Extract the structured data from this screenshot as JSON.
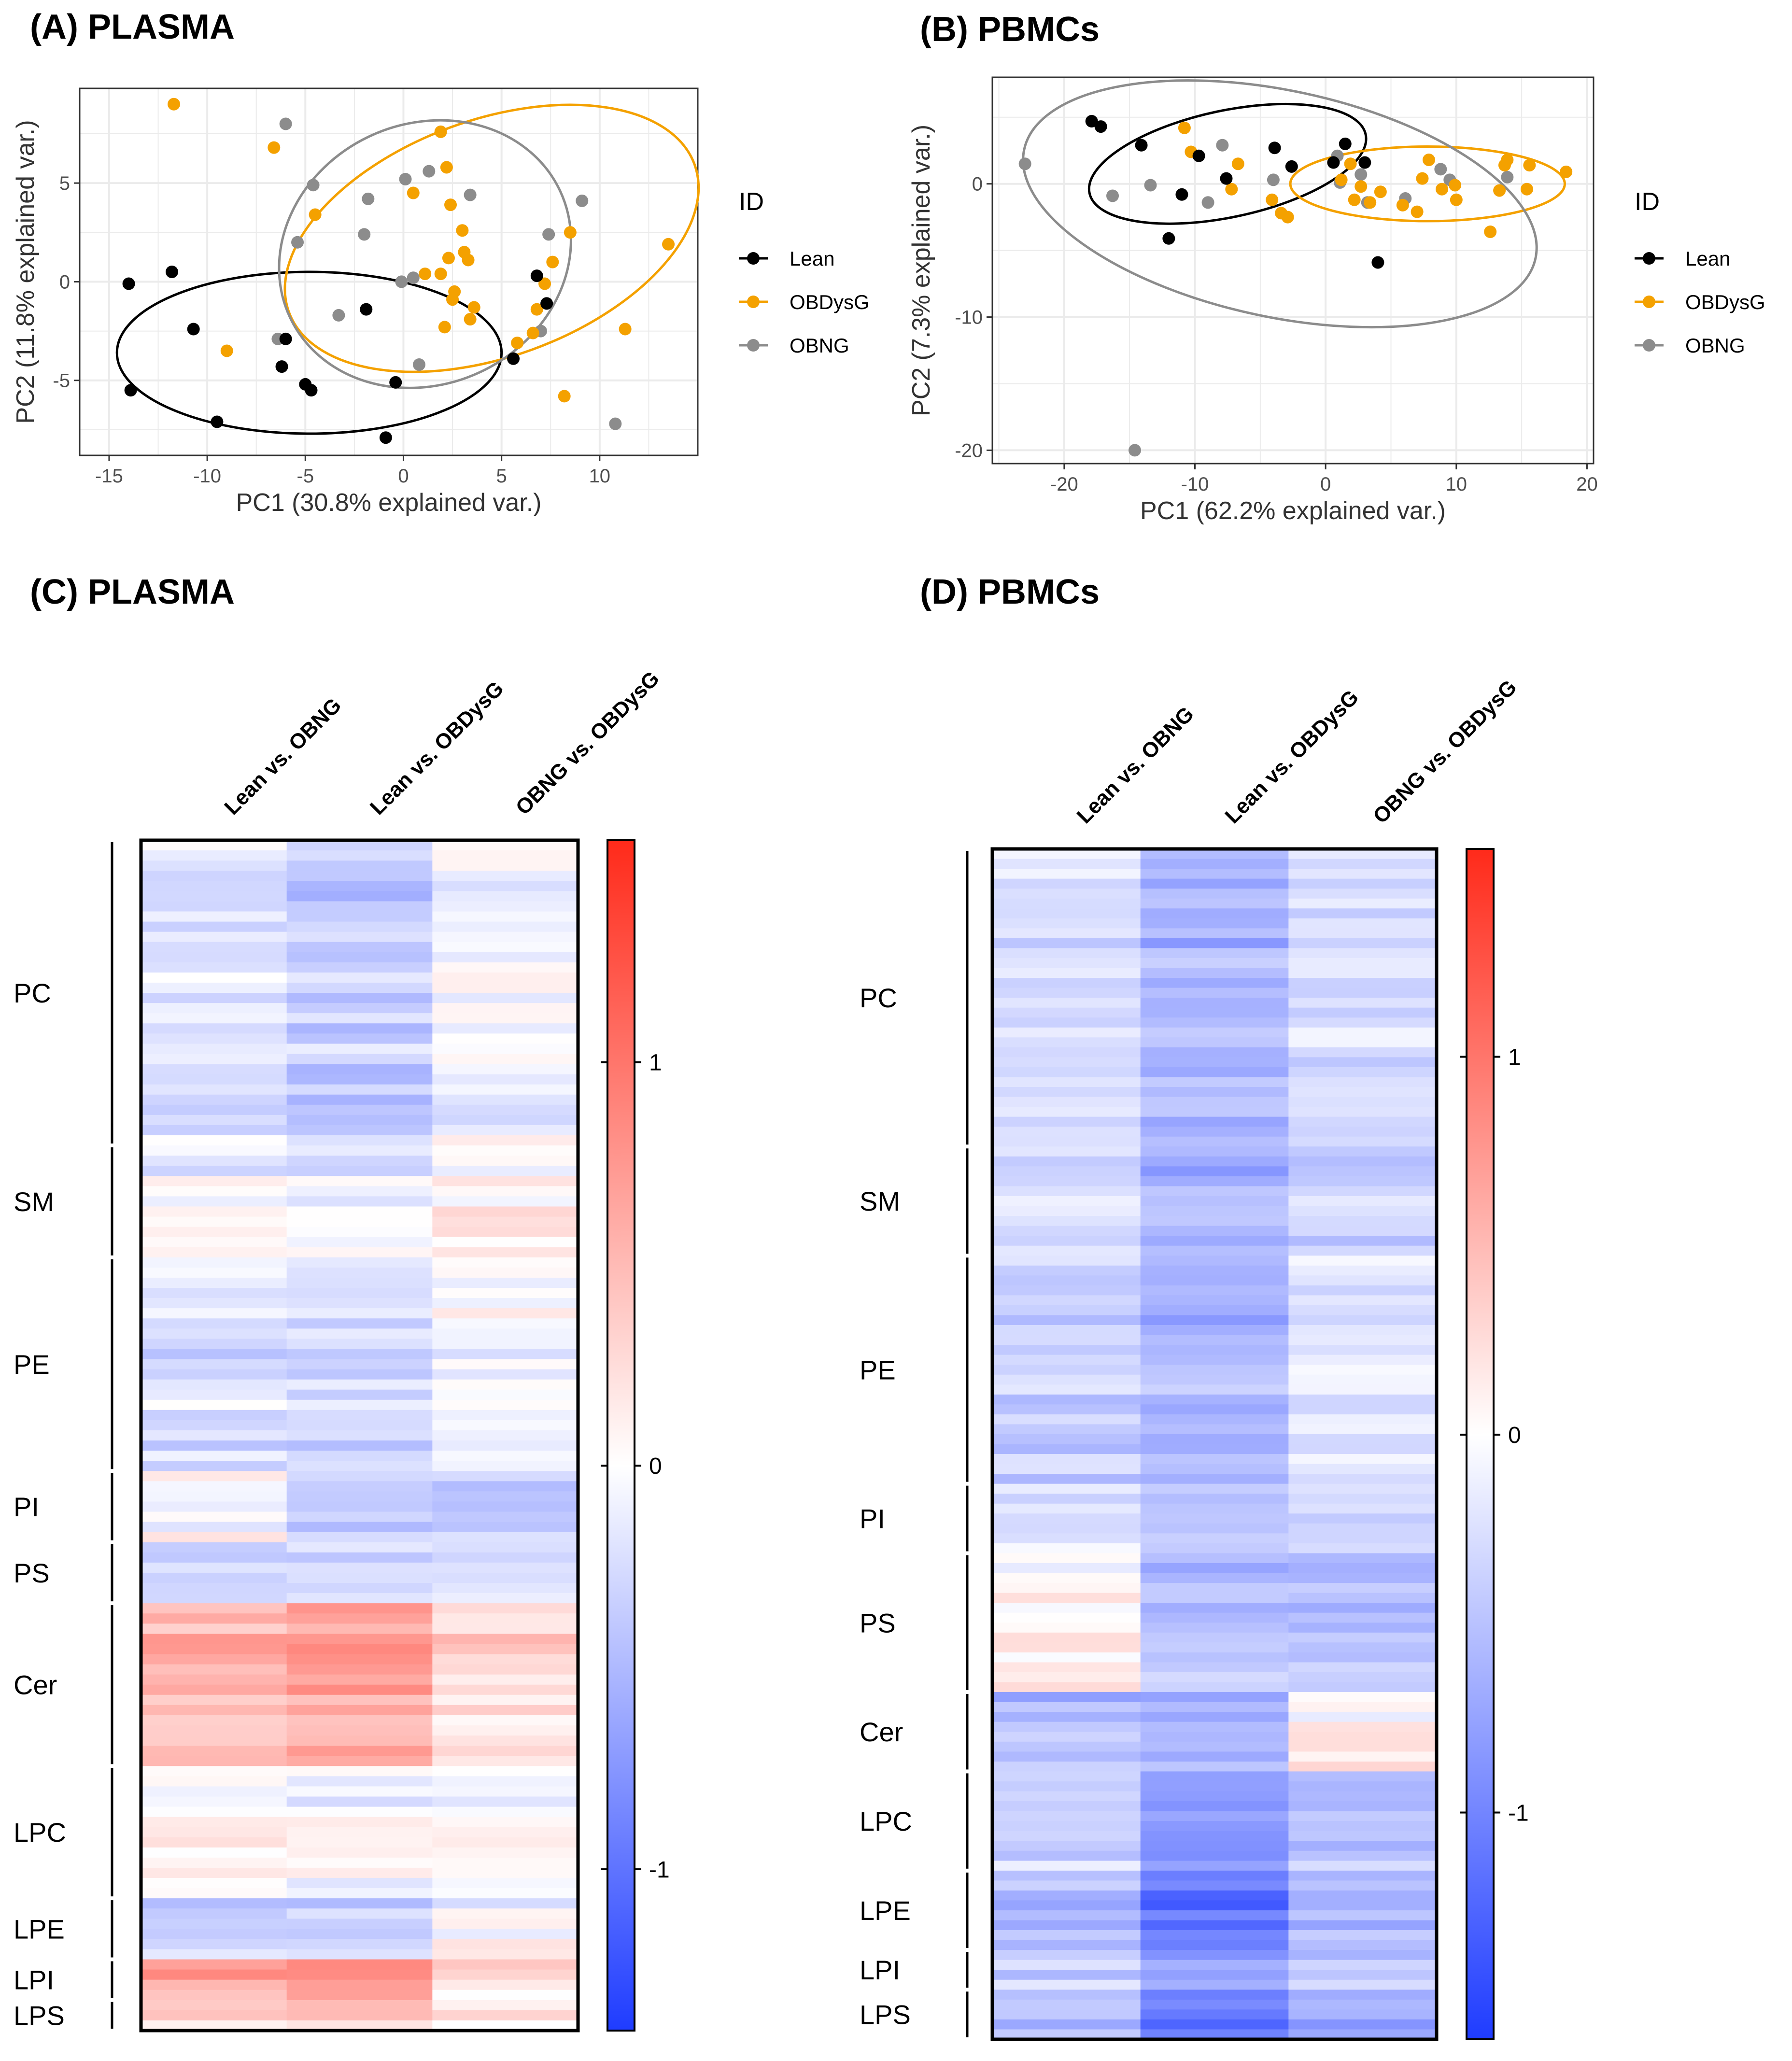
{
  "panels": {
    "A": "(A) PLASMA",
    "B": "(B) PBMCs",
    "C": "(C) PLASMA",
    "D": "(D) PBMCs"
  },
  "legend": {
    "title": "ID",
    "entries": [
      "Lean",
      "OBDysG",
      "OBNG"
    ]
  },
  "colors": {
    "Lean": "#000000",
    "OBDysG": "#f4a100",
    "OBNG": "#8c8c8c",
    "heat_neg": "#1f3cff",
    "heat_mid": "#ffffff",
    "heat_pos": "#ff2a1a",
    "panel_bg": "#ffffff",
    "grid": "#ebebeb"
  },
  "chart_data": [
    {
      "id": "A",
      "type": "scatter",
      "title": "(A) PLASMA",
      "xlabel": "PC1 (30.8% explained var.)",
      "ylabel": "PC2 (11.8% explained var.)",
      "xlim": [
        -16.5,
        15
      ],
      "ylim": [
        -8.8,
        9.8
      ],
      "xticks": [
        -15,
        -10,
        -5,
        0,
        5,
        10
      ],
      "xtick_labels": [
        "-15",
        "-10",
        "-5",
        "0",
        "5",
        "10"
      ],
      "yticks": [
        -5,
        0,
        5
      ],
      "ytick_labels": [
        "-5",
        "0",
        "5"
      ],
      "series": [
        {
          "name": "Lean",
          "points": [
            [
              -14.0,
              -0.1
            ],
            [
              -11.8,
              0.5
            ],
            [
              -10.7,
              -2.4
            ],
            [
              -13.9,
              -5.5
            ],
            [
              -9.5,
              -7.1
            ],
            [
              -6.2,
              -4.3
            ],
            [
              -6.0,
              -2.9
            ],
            [
              -5.0,
              -5.2
            ],
            [
              -4.7,
              -5.5
            ],
            [
              -1.9,
              -1.4
            ],
            [
              -0.4,
              -5.1
            ],
            [
              -0.9,
              -7.9
            ],
            [
              5.6,
              -3.9
            ],
            [
              6.8,
              0.3
            ],
            [
              7.3,
              -1.1
            ]
          ],
          "ellipse": {
            "cx": -4.8,
            "cy": -3.6,
            "rx": 9.8,
            "ry": 4.1,
            "angle": 0
          }
        },
        {
          "name": "OBDysG",
          "points": [
            [
              -11.7,
              9.0
            ],
            [
              -9.0,
              -3.5
            ],
            [
              -6.6,
              6.8
            ],
            [
              -4.5,
              3.4
            ],
            [
              1.9,
              7.6
            ],
            [
              2.2,
              5.8
            ],
            [
              0.5,
              4.5
            ],
            [
              2.4,
              3.9
            ],
            [
              3.0,
              2.6
            ],
            [
              3.1,
              1.5
            ],
            [
              3.3,
              1.1
            ],
            [
              2.3,
              1.2
            ],
            [
              1.9,
              0.4
            ],
            [
              1.1,
              0.4
            ],
            [
              2.6,
              -0.5
            ],
            [
              2.5,
              -0.9
            ],
            [
              3.6,
              -1.3
            ],
            [
              3.4,
              -1.9
            ],
            [
              2.1,
              -2.3
            ],
            [
              5.8,
              -3.1
            ],
            [
              6.8,
              -1.4
            ],
            [
              6.6,
              -2.6
            ],
            [
              7.2,
              -0.1
            ],
            [
              7.6,
              1.0
            ],
            [
              8.5,
              2.5
            ],
            [
              11.3,
              -2.4
            ],
            [
              13.5,
              1.9
            ],
            [
              8.2,
              -5.8
            ]
          ],
          "ellipse": {
            "cx": 4.5,
            "cy": 2.2,
            "rx": 11.0,
            "ry": 6.0,
            "angle": -20
          }
        },
        {
          "name": "OBNG",
          "points": [
            [
              -6.0,
              8.0
            ],
            [
              -4.6,
              4.9
            ],
            [
              -5.4,
              2.0
            ],
            [
              -6.4,
              -2.9
            ],
            [
              -3.3,
              -1.7
            ],
            [
              -1.8,
              4.2
            ],
            [
              -2.0,
              2.4
            ],
            [
              0.1,
              5.2
            ],
            [
              0.5,
              0.2
            ],
            [
              1.3,
              5.6
            ],
            [
              3.4,
              4.4
            ],
            [
              0.8,
              -4.2
            ],
            [
              -0.1,
              0.0
            ],
            [
              7.4,
              2.4
            ],
            [
              9.1,
              4.1
            ],
            [
              7.0,
              -2.5
            ],
            [
              10.8,
              -7.2
            ]
          ],
          "ellipse": {
            "cx": 1.1,
            "cy": 1.4,
            "rx": 7.6,
            "ry": 6.6,
            "angle": -25
          }
        }
      ]
    },
    {
      "id": "B",
      "type": "scatter",
      "title": "(B) PBMCs",
      "xlabel": "PC1 (62.2% explained var.)",
      "ylabel": "PC2 (7.3% explained var.)",
      "xlim": [
        -25.5,
        20.5
      ],
      "ylim": [
        -21.0,
        8.0
      ],
      "xticks": [
        -20,
        -10,
        0,
        10,
        20
      ],
      "xtick_labels": [
        "-20",
        "-10",
        "0",
        "10",
        "20"
      ],
      "yticks": [
        -20,
        -10,
        0
      ],
      "ytick_labels": [
        "-20",
        "-10",
        "0"
      ],
      "series": [
        {
          "name": "Lean",
          "points": [
            [
              -17.9,
              4.7
            ],
            [
              -17.2,
              4.3
            ],
            [
              -14.1,
              2.9
            ],
            [
              -9.7,
              2.1
            ],
            [
              -11.0,
              -0.8
            ],
            [
              -7.6,
              0.4
            ],
            [
              -3.9,
              2.7
            ],
            [
              -2.6,
              1.3
            ],
            [
              -12.0,
              -4.1
            ],
            [
              0.6,
              1.6
            ],
            [
              1.5,
              3.0
            ],
            [
              3.0,
              1.6
            ],
            [
              4.0,
              -5.9
            ]
          ],
          "ellipse": {
            "cx": -7.5,
            "cy": 1.5,
            "rx": 10.8,
            "ry": 4.0,
            "angle": -12
          }
        },
        {
          "name": "OBDysG",
          "points": [
            [
              -10.8,
              4.2
            ],
            [
              -10.3,
              2.4
            ],
            [
              -6.7,
              1.5
            ],
            [
              -7.2,
              -0.4
            ],
            [
              -4.1,
              -1.2
            ],
            [
              -3.4,
              -2.2
            ],
            [
              -2.9,
              -2.5
            ],
            [
              1.2,
              0.3
            ],
            [
              1.9,
              1.5
            ],
            [
              2.2,
              -1.2
            ],
            [
              2.7,
              -0.2
            ],
            [
              3.4,
              -1.4
            ],
            [
              4.2,
              -0.6
            ],
            [
              5.9,
              -1.6
            ],
            [
              7.0,
              -2.1
            ],
            [
              7.4,
              0.4
            ],
            [
              7.9,
              1.8
            ],
            [
              8.9,
              -0.4
            ],
            [
              9.9,
              -0.1
            ],
            [
              10.0,
              -1.2
            ],
            [
              12.6,
              -3.6
            ],
            [
              13.3,
              -0.5
            ],
            [
              13.7,
              1.4
            ],
            [
              15.4,
              -0.4
            ],
            [
              15.6,
              1.4
            ],
            [
              18.4,
              0.9
            ],
            [
              13.9,
              1.8
            ]
          ],
          "ellipse": {
            "cx": 7.8,
            "cy": 0.0,
            "rx": 10.5,
            "ry": 2.8,
            "angle": 0
          }
        },
        {
          "name": "OBNG",
          "points": [
            [
              -23.0,
              1.5
            ],
            [
              -16.3,
              -0.9
            ],
            [
              -13.4,
              -0.1
            ],
            [
              -9.0,
              -1.4
            ],
            [
              -7.9,
              2.9
            ],
            [
              -4.0,
              0.3
            ],
            [
              0.9,
              2.1
            ],
            [
              1.1,
              0.1
            ],
            [
              2.7,
              0.7
            ],
            [
              3.2,
              -1.4
            ],
            [
              6.1,
              -1.1
            ],
            [
              8.8,
              1.1
            ],
            [
              9.5,
              0.3
            ],
            [
              13.9,
              0.5
            ],
            [
              -14.6,
              -20.0
            ]
          ],
          "ellipse": {
            "cx": -3.5,
            "cy": -1.5,
            "rx": 20.0,
            "ry": 8.5,
            "angle": 12
          }
        }
      ]
    },
    {
      "id": "C",
      "type": "heatmap",
      "title": "(C) PLASMA",
      "columns": [
        "Lean vs. OBNG",
        "Lean vs. OBDysG",
        "OBNG vs. OBDysG"
      ],
      "row_groups": [
        {
          "name": "PC",
          "rows": 30,
          "values": [
            -0.2,
            -0.35,
            -0.06
          ]
        },
        {
          "name": "SM",
          "rows": 11,
          "values": [
            -0.05,
            -0.1,
            0.08
          ]
        },
        {
          "name": "PE",
          "rows": 21,
          "values": [
            -0.2,
            -0.22,
            -0.02
          ]
        },
        {
          "name": "PI",
          "rows": 7,
          "values": [
            0.05,
            -0.3,
            -0.35
          ]
        },
        {
          "name": "PS",
          "rows": 6,
          "values": [
            -0.22,
            -0.2,
            -0.15
          ]
        },
        {
          "name": "Cer",
          "rows": 16,
          "values": [
            0.55,
            0.7,
            0.3
          ]
        },
        {
          "name": "LPC",
          "rows": 13,
          "values": [
            0.02,
            -0.05,
            -0.05
          ]
        },
        {
          "name": "LPE",
          "rows": 6,
          "values": [
            -0.3,
            -0.3,
            0.0
          ]
        },
        {
          "name": "LPI",
          "rows": 4,
          "values": [
            0.6,
            0.75,
            0.15
          ]
        },
        {
          "name": "LPS",
          "rows": 3,
          "values": [
            0.3,
            0.35,
            0.1
          ]
        }
      ],
      "colorbar": {
        "ticks": [
          1,
          0,
          -1
        ],
        "tick_labels": [
          "1",
          "0",
          "-1"
        ],
        "min": -1.4,
        "max": 1.55
      }
    },
    {
      "id": "D",
      "type": "heatmap",
      "title": "(D) PBMCs",
      "columns": [
        "Lean vs. OBNG",
        "Lean vs. OBDysG",
        "OBNG vs. OBDysG"
      ],
      "row_groups": [
        {
          "name": "PC",
          "rows": 30,
          "values": [
            -0.3,
            -0.6,
            -0.3
          ]
        },
        {
          "name": "SM",
          "rows": 11,
          "values": [
            -0.25,
            -0.6,
            -0.35
          ]
        },
        {
          "name": "PE",
          "rows": 23,
          "values": [
            -0.4,
            -0.6,
            -0.25
          ]
        },
        {
          "name": "PI",
          "rows": 7,
          "values": [
            -0.15,
            -0.35,
            -0.25
          ]
        },
        {
          "name": "PS",
          "rows": 14,
          "values": [
            0.05,
            -0.55,
            -0.55
          ]
        },
        {
          "name": "Cer",
          "rows": 8,
          "values": [
            -0.55,
            -0.65,
            0.1
          ]
        },
        {
          "name": "LPC",
          "rows": 10,
          "values": [
            -0.4,
            -0.85,
            -0.55
          ]
        },
        {
          "name": "LPE",
          "rows": 8,
          "values": [
            -0.55,
            -1.1,
            -0.6
          ]
        },
        {
          "name": "LPI",
          "rows": 4,
          "values": [
            -0.35,
            -0.7,
            -0.4
          ]
        },
        {
          "name": "LPS",
          "rows": 5,
          "values": [
            -0.45,
            -1.0,
            -0.6
          ]
        }
      ],
      "colorbar": {
        "ticks": [
          1,
          0,
          -1
        ],
        "tick_labels": [
          "1",
          "0",
          "-1"
        ],
        "min": -1.6,
        "max": 1.55
      }
    }
  ]
}
